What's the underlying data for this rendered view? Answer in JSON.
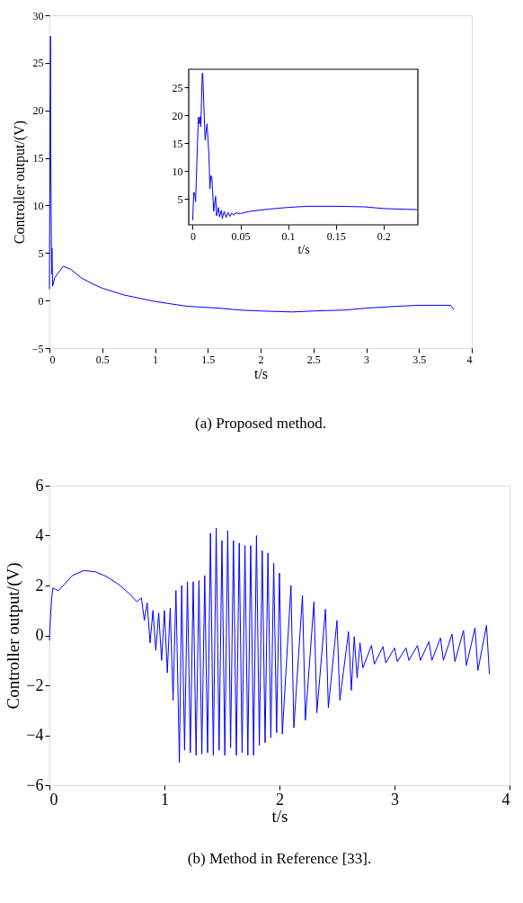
{
  "chart_data": [
    {
      "type": "line",
      "title": "(a) Proposed method.",
      "xlabel": "t/s",
      "ylabel": "Controller output/(V)",
      "xlim": [
        0,
        4
      ],
      "xticks": [
        0,
        0.5,
        1,
        1.5,
        2,
        2.5,
        3,
        3.5,
        4
      ],
      "ylim": [
        -5,
        30
      ],
      "yticks": [
        -5,
        0,
        5,
        10,
        15,
        20,
        25,
        30
      ],
      "grid": false,
      "series": [
        {
          "color": "#0000ff",
          "x": [
            0,
            0.006,
            0.01,
            0.013,
            0.018,
            0.022,
            0.024,
            0.03,
            0.05,
            0.13,
            0.2,
            0.3,
            0.4,
            0.5,
            0.7,
            1.0,
            1.3,
            1.6,
            1.8,
            2.0,
            2.3,
            2.5,
            2.8,
            3.0,
            3.3,
            3.5,
            3.8,
            3.83
          ],
          "values": [
            1.2,
            19.7,
            27.8,
            15.6,
            6.8,
            2.8,
            5.5,
            1.5,
            2.4,
            3.6,
            3.3,
            2.4,
            1.8,
            1.3,
            0.6,
            -0.1,
            -0.6,
            -0.8,
            -1.0,
            -1.1,
            -1.2,
            -1.1,
            -1.0,
            -0.8,
            -0.6,
            -0.5,
            -0.5,
            -1.0
          ]
        }
      ]
    },
    {
      "type": "line",
      "xlabel": "t/s",
      "xlim": [
        -0.0042,
        0.236
      ],
      "xticks": [
        0,
        0.05,
        0.1,
        0.15,
        0.2
      ],
      "ylim": [
        0.37,
        28.3
      ],
      "yticks": [
        5,
        10,
        15,
        20,
        25
      ],
      "grid": false,
      "series": [
        {
          "color": "#0000ff",
          "x": [
            0,
            0.001,
            0.002,
            0.003,
            0.005,
            0.006,
            0.007,
            0.008,
            0.0085,
            0.01,
            0.0105,
            0.013,
            0.015,
            0.017,
            0.018,
            0.019,
            0.02,
            0.022,
            0.024,
            0.025,
            0.027,
            0.028,
            0.03,
            0.031,
            0.033,
            0.035,
            0.037,
            0.039,
            0.041,
            0.043,
            0.045,
            0.05,
            0.06,
            0.07,
            0.08,
            0.1,
            0.12,
            0.15,
            0.18,
            0.2,
            0.235
          ],
          "values": [
            1.2,
            6.2,
            6.1,
            4.5,
            15,
            19.7,
            18.5,
            19.8,
            18,
            27.6,
            27.6,
            15.6,
            18.5,
            13,
            6.8,
            9.2,
            9,
            2.8,
            5.5,
            2,
            3.5,
            1.8,
            3,
            1.5,
            2.8,
            1.7,
            2.6,
            1.9,
            2.5,
            2.1,
            2.5,
            2.4,
            2.8,
            3.0,
            3.2,
            3.5,
            3.7,
            3.7,
            3.6,
            3.3,
            3.1
          ]
        }
      ]
    },
    {
      "type": "line",
      "title": "(b) Method in Reference [33].",
      "xlabel": "t/s",
      "ylabel": "Controller output/(V)",
      "xlim": [
        0,
        4
      ],
      "xticks": [
        0,
        1,
        2,
        3,
        4
      ],
      "ylim": [
        -6,
        6
      ],
      "yticks": [
        -6,
        -4,
        -2,
        0,
        2,
        4,
        6
      ],
      "grid": false,
      "series": [
        {
          "color": "#0000ff",
          "x": [
            0,
            0.01,
            0.02,
            0.03,
            0.05,
            0.08,
            0.12,
            0.2,
            0.3,
            0.4,
            0.5,
            0.6,
            0.7,
            0.76,
            0.8,
            0.825,
            0.85,
            0.875,
            0.9,
            0.925,
            0.95,
            0.975,
            1.0,
            1.025,
            1.05,
            1.075,
            1.1,
            1.13,
            1.15,
            1.175,
            1.2,
            1.225,
            1.25,
            1.275,
            1.3,
            1.325,
            1.35,
            1.375,
            1.4,
            1.425,
            1.45,
            1.475,
            1.5,
            1.525,
            1.55,
            1.575,
            1.6,
            1.625,
            1.65,
            1.675,
            1.7,
            1.725,
            1.75,
            1.775,
            1.8,
            1.825,
            1.85,
            1.875,
            1.9,
            1.925,
            1.95,
            1.975,
            2.0,
            2.025,
            2.1,
            2.125,
            2.2,
            2.225,
            2.3,
            2.325,
            2.4,
            2.425,
            2.5,
            2.525,
            2.6,
            2.625,
            2.65,
            2.675,
            2.7,
            2.725,
            2.8,
            2.825,
            2.9,
            2.925,
            3.0,
            3.025,
            3.1,
            3.125,
            3.2,
            3.225,
            3.3,
            3.325,
            3.4,
            3.425,
            3.5,
            3.525,
            3.6,
            3.625,
            3.7,
            3.725,
            3.8,
            3.825
          ],
          "values": [
            -0.2,
            0.8,
            1.5,
            1.9,
            1.85,
            1.8,
            2.0,
            2.4,
            2.6,
            2.55,
            2.35,
            2.05,
            1.65,
            1.35,
            1.5,
            0.6,
            1.3,
            -0.3,
            1.0,
            -0.6,
            0.9,
            -1.0,
            1.0,
            -1.5,
            1.1,
            -2.6,
            1.8,
            -5.1,
            2.0,
            -4.6,
            2.15,
            -4.7,
            2.15,
            -4.8,
            2.2,
            -4.75,
            2.4,
            -4.7,
            4.1,
            -4.8,
            4.3,
            -4.6,
            3.8,
            -4.8,
            4.2,
            -4.5,
            3.8,
            -4.8,
            3.7,
            -4.7,
            3.6,
            -4.8,
            3.6,
            -4.8,
            4.0,
            -4.4,
            3.4,
            -4.3,
            3.3,
            -4.1,
            2.9,
            -3.9,
            2.5,
            -3.95,
            2.0,
            -3.7,
            1.6,
            -3.4,
            1.35,
            -3.1,
            1.05,
            -2.9,
            0.6,
            -2.6,
            0.15,
            -2.2,
            -0.05,
            -1.7,
            -0.3,
            -1.3,
            -0.4,
            -1.15,
            -0.45,
            -1.1,
            -0.5,
            -1.05,
            -0.5,
            -1.0,
            -0.4,
            -1.0,
            -0.25,
            -1.0,
            -0.1,
            -1.0,
            0.05,
            -1.05,
            0.2,
            -1.2,
            0.3,
            -1.4,
            0.4,
            -1.55
          ]
        }
      ]
    }
  ]
}
